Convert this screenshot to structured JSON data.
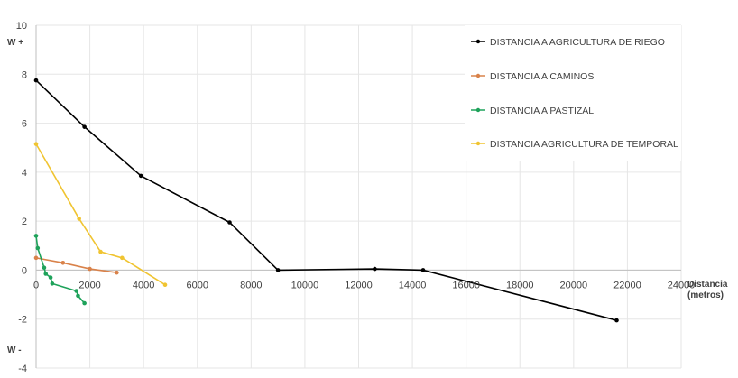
{
  "chart_data": {
    "type": "line",
    "title": "",
    "xlabel": "Distancia (metros)",
    "xlabel_lines": [
      "Distancia",
      "(metros)"
    ],
    "ylabel_top": "W +",
    "ylabel_bottom": "W -",
    "xlim": [
      0,
      24000
    ],
    "ylim": [
      -4,
      10
    ],
    "x_ticks": [
      "0",
      "2000",
      "4000",
      "6000",
      "8000",
      "10000",
      "12000",
      "14000",
      "16000",
      "18000",
      "20000",
      "22000",
      "24000"
    ],
    "y_ticks": [
      "-4",
      "-2",
      "0",
      "2",
      "4",
      "6",
      "8",
      "10"
    ],
    "grid": true,
    "legend_position": "right",
    "series": [
      {
        "name": "DISTANCIA A AGRICULTURA DE RIEGO",
        "color": "#000000",
        "points": [
          [
            0,
            7.75
          ],
          [
            1800,
            5.85
          ],
          [
            3900,
            3.85
          ],
          [
            7200,
            1.95
          ],
          [
            9000,
            0.0
          ],
          [
            12600,
            0.05
          ],
          [
            14400,
            0.0
          ],
          [
            21600,
            -2.05
          ]
        ]
      },
      {
        "name": "DISTANCIA A CAMINOS",
        "color": "#d9824a",
        "points": [
          [
            0,
            0.5
          ],
          [
            1000,
            0.3
          ],
          [
            2000,
            0.05
          ],
          [
            3000,
            -0.1
          ]
        ]
      },
      {
        "name": "DISTANCIA A PASTIZAL",
        "color": "#1ea25a",
        "points": [
          [
            0,
            1.4
          ],
          [
            60,
            0.9
          ],
          [
            300,
            0.1
          ],
          [
            360,
            -0.15
          ],
          [
            540,
            -0.3
          ],
          [
            600,
            -0.55
          ],
          [
            1500,
            -0.85
          ],
          [
            1560,
            -1.05
          ],
          [
            1800,
            -1.35
          ]
        ]
      },
      {
        "name": "DISTANCIA AGRICULTURA DE TEMPORAL",
        "color": "#f0c431",
        "points": [
          [
            0,
            5.15
          ],
          [
            1600,
            2.1
          ],
          [
            2400,
            0.75
          ],
          [
            3200,
            0.5
          ],
          [
            4800,
            -0.6
          ]
        ]
      }
    ]
  }
}
